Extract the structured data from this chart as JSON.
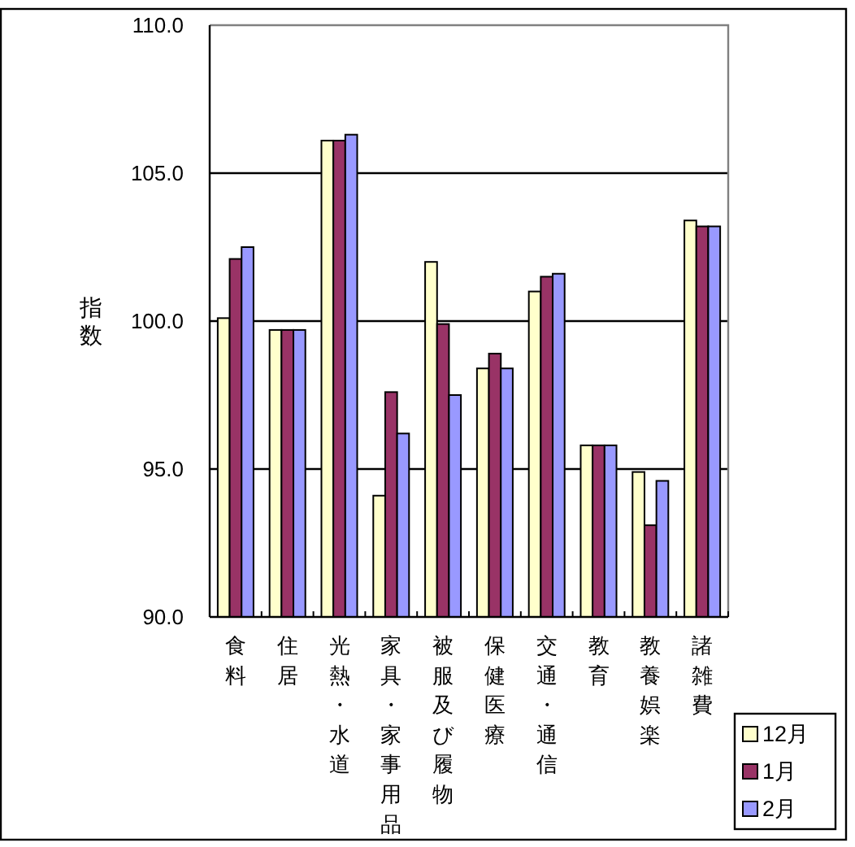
{
  "chart_data": {
    "type": "bar",
    "ylabel": "指数",
    "categories": [
      "食料",
      "住居",
      "光熱・水道",
      "家具・家事用品",
      "被服及び履物",
      "保健医療",
      "交通・通信",
      "教育",
      "教養娯楽",
      "諸雑費"
    ],
    "series": [
      {
        "name": "12月",
        "color": "#ffffcc",
        "values": [
          100.1,
          99.7,
          106.1,
          94.1,
          102.0,
          98.4,
          101.0,
          95.8,
          94.9,
          103.4
        ]
      },
      {
        "name": "1月",
        "color": "#993366",
        "values": [
          102.1,
          99.7,
          106.1,
          97.6,
          99.9,
          98.9,
          101.5,
          95.8,
          93.1,
          103.2
        ]
      },
      {
        "name": "2月",
        "color": "#9999ff",
        "values": [
          102.5,
          99.7,
          106.3,
          96.2,
          97.5,
          98.4,
          101.6,
          95.8,
          94.6,
          103.2
        ]
      }
    ],
    "ylim": [
      90,
      110
    ],
    "yticks": [
      {
        "value": 90,
        "label": "90.0"
      },
      {
        "value": 95,
        "label": "95.0"
      },
      {
        "value": 100,
        "label": "100.0"
      },
      {
        "value": 105,
        "label": "105.0"
      },
      {
        "value": 110,
        "label": "110.0"
      }
    ],
    "grid": "y",
    "legend": "bottom right"
  }
}
